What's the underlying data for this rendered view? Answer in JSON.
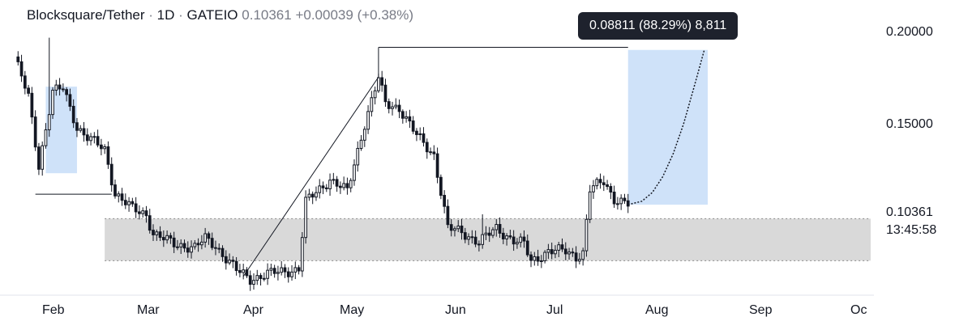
{
  "header": {
    "symbol": "Blocksquare/Tether",
    "sep": "·",
    "interval": "1D",
    "exchange": "GATEIO",
    "last": "0.10361",
    "change": "+0.00039",
    "change_pct": "(+0.38%)"
  },
  "tooltip": {
    "text": "0.08811 (88.29%) 8,811"
  },
  "price_axis": {
    "labels": [
      "0.20000",
      "0.15000"
    ],
    "last_price": "0.10361",
    "countdown": "13:45:58"
  },
  "time_axis": {
    "labels": [
      "Feb",
      "Mar",
      "Apr",
      "May",
      "Jun",
      "Jul",
      "Aug",
      "Sep",
      "Oc"
    ]
  },
  "colors": {
    "candle": "#131722",
    "box_fill": "#d9d9d9",
    "projection_fill": "#cfe2f9",
    "tooltip_bg": "#1e222d"
  },
  "chart_data": {
    "type": "candlestick",
    "x_range": [
      "2024-01-28",
      "2024-10-01"
    ],
    "y_range": [
      0.055,
      0.215
    ],
    "range_box": {
      "y_top": 0.0955,
      "y_bottom": 0.0715,
      "x_start": "2024-02-23",
      "x_end": "2024-10-01"
    },
    "feb_box": {
      "x_start": "2024-02-06",
      "x_end": "2024-02-15",
      "y_top": 0.171,
      "y_bottom": 0.1215
    },
    "projection": {
      "x_start": "2024-07-23",
      "x_end": "2024-08-15",
      "y_start": 0.1035,
      "y_end": 0.192,
      "path": [
        [
          "2024-07-23",
          0.1035
        ],
        [
          "2024-07-27",
          0.1055
        ],
        [
          "2024-07-30",
          0.1105
        ],
        [
          "2024-08-02",
          0.1195
        ],
        [
          "2024-08-05",
          0.1325
        ],
        [
          "2024-08-08",
          0.1495
        ],
        [
          "2024-08-11",
          0.1705
        ],
        [
          "2024-08-14",
          0.192
        ]
      ]
    },
    "trend_lines": [
      {
        "from": [
          "2024-02-03",
          0.1095
        ],
        "to": [
          "2024-02-25",
          0.1095
        ]
      },
      {
        "from": [
          "2024-04-03",
          0.0625
        ],
        "to": [
          "2024-05-12",
          0.1765
        ]
      },
      {
        "from": [
          "2024-05-12",
          0.1765
        ],
        "to": [
          "2024-05-12",
          0.1935
        ]
      },
      {
        "from": [
          "2024-05-12",
          0.1935
        ],
        "to": [
          "2024-07-23",
          0.1935
        ]
      }
    ],
    "anchors": [
      [
        "2024-01-28",
        0.188
      ],
      [
        "2024-02-01",
        0.165
      ],
      [
        "2024-02-04",
        0.126
      ],
      [
        "2024-02-08",
        0.168
      ],
      [
        "2024-02-11",
        0.17
      ],
      [
        "2024-02-15",
        0.148
      ],
      [
        "2024-02-18",
        0.142
      ],
      [
        "2024-02-23",
        0.135
      ],
      [
        "2024-02-26",
        0.11
      ],
      [
        "2024-03-02",
        0.101
      ],
      [
        "2024-03-06",
        0.098
      ],
      [
        "2024-03-08",
        0.087
      ],
      [
        "2024-03-14",
        0.081
      ],
      [
        "2024-03-20",
        0.079
      ],
      [
        "2024-03-23",
        0.084
      ],
      [
        "2024-03-26",
        0.08
      ],
      [
        "2024-04-01",
        0.066
      ],
      [
        "2024-04-05",
        0.061
      ],
      [
        "2024-04-10",
        0.064
      ],
      [
        "2024-04-17",
        0.066
      ],
      [
        "2024-04-19",
        0.067
      ],
      [
        "2024-04-21",
        0.105
      ],
      [
        "2024-04-28",
        0.118
      ],
      [
        "2024-05-03",
        0.111
      ],
      [
        "2024-05-08",
        0.15
      ],
      [
        "2024-05-12",
        0.176
      ],
      [
        "2024-05-14",
        0.161
      ],
      [
        "2024-05-18",
        0.159
      ],
      [
        "2024-05-23",
        0.143
      ],
      [
        "2024-05-28",
        0.132
      ],
      [
        "2024-06-01",
        0.09
      ],
      [
        "2024-06-05",
        0.088
      ],
      [
        "2024-06-10",
        0.082
      ],
      [
        "2024-06-15",
        0.09
      ],
      [
        "2024-06-20",
        0.083
      ],
      [
        "2024-06-23",
        0.081
      ],
      [
        "2024-06-25",
        0.071
      ],
      [
        "2024-06-30",
        0.077
      ],
      [
        "2024-07-05",
        0.077
      ],
      [
        "2024-07-08",
        0.074
      ],
      [
        "2024-07-10",
        0.076
      ],
      [
        "2024-07-12",
        0.112
      ],
      [
        "2024-07-16",
        0.117
      ],
      [
        "2024-07-19",
        0.107
      ],
      [
        "2024-07-23",
        0.1036
      ]
    ]
  }
}
